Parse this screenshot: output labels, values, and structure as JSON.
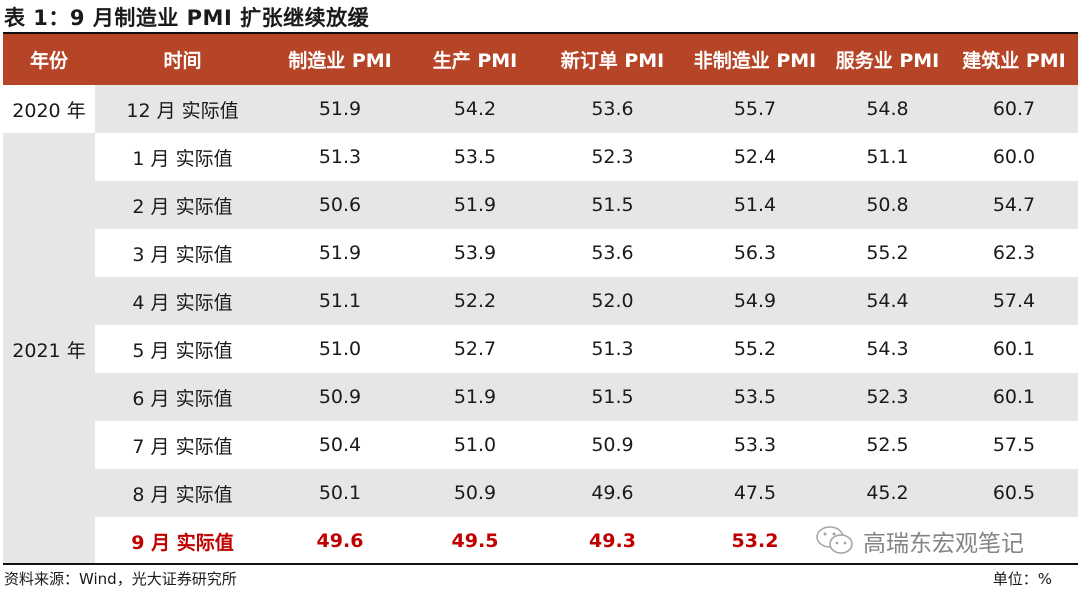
{
  "title": "表 1：9 月制造业 PMI 扩张继续放缓",
  "header": [
    "年份",
    "时间",
    "制造业 PMI",
    "生产 PMI",
    "新订单 PMI",
    "非制造业 PMI",
    "服务业 PMI",
    "建筑业 PMI"
  ],
  "rows": [
    {
      "year": "2020 年",
      "time": "12 月  实际值",
      "values": [
        "51.9",
        "54.2",
        "53.6",
        "55.7",
        "54.8",
        "60.7"
      ]
    },
    {
      "time": "1 月  实际值",
      "values": [
        "51.3",
        "53.5",
        "52.3",
        "52.4",
        "51.1",
        "60.0"
      ]
    },
    {
      "time": "2 月  实际值",
      "values": [
        "50.6",
        "51.9",
        "51.5",
        "51.4",
        "50.8",
        "54.7"
      ]
    },
    {
      "time": "3 月  实际值",
      "values": [
        "51.9",
        "53.9",
        "53.6",
        "56.3",
        "55.2",
        "62.3"
      ]
    },
    {
      "time": "4 月  实际值",
      "values": [
        "51.1",
        "52.2",
        "52.0",
        "54.9",
        "54.4",
        "57.4"
      ]
    },
    {
      "time": "5 月  实际值",
      "values": [
        "51.0",
        "52.7",
        "51.3",
        "55.2",
        "54.3",
        "60.1"
      ]
    },
    {
      "time": "6 月  实际值",
      "values": [
        "50.9",
        "51.9",
        "51.5",
        "53.5",
        "52.3",
        "60.1"
      ]
    },
    {
      "time": "7 月  实际值",
      "values": [
        "50.4",
        "51.0",
        "50.9",
        "53.3",
        "52.5",
        "57.5"
      ]
    },
    {
      "time": "8 月  实际值",
      "values": [
        "50.1",
        "50.9",
        "49.6",
        "47.5",
        "45.2",
        "60.5"
      ]
    },
    {
      "time": "9 月  实际值",
      "values": [
        "49.6",
        "49.5",
        "49.3",
        "53.2"
      ]
    }
  ],
  "year_2021": "2021 年",
  "highlight_color": "#c00000",
  "header_color": "#b64426",
  "source": "资料来源：Wind，光大证券研究所",
  "unit": "单位：%",
  "watermark": "高瑞东宏观笔记"
}
